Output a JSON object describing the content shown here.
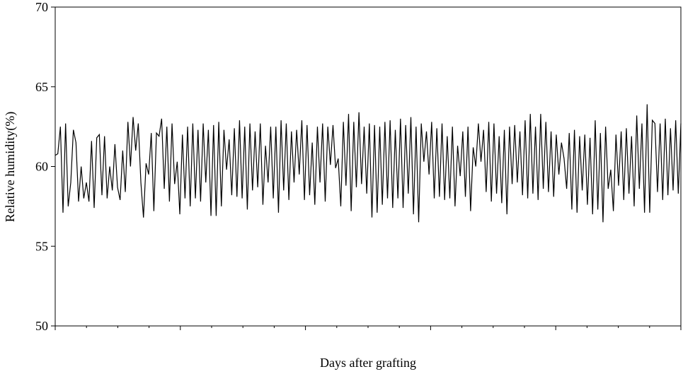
{
  "chart_data": {
    "type": "line",
    "xlabel": "Days after grafting",
    "ylabel": "Relative humidity(%)",
    "ylim": [
      50,
      70
    ],
    "yticks": [
      50,
      55,
      60,
      65,
      70
    ],
    "grid": false,
    "series": [
      {
        "color": "#000000",
        "values": [
          60.7,
          60.8,
          62.5,
          57.1,
          62.7,
          57.5,
          59,
          62.3,
          61.5,
          57.8,
          60,
          58,
          59,
          57.8,
          61.6,
          57.4,
          61.8,
          62,
          58.2,
          61.9,
          58,
          60,
          58.5,
          61.4,
          58.7,
          57.9,
          61,
          58.4,
          62.8,
          60,
          63.1,
          61,
          62.7,
          59,
          56.8,
          60.2,
          59.5,
          62.1,
          57.2,
          62.1,
          61.9,
          63,
          58.6,
          62.5,
          57.8,
          62.7,
          58.9,
          60.3,
          57,
          62,
          58,
          62.5,
          57.5,
          62.7,
          58,
          62.3,
          57.8,
          62.7,
          59,
          62.3,
          56.9,
          62.6,
          56.9,
          62.8,
          57.5,
          62.3,
          59.8,
          61.7,
          58.2,
          62.4,
          58.1,
          62.9,
          58,
          62.5,
          57.3,
          62.7,
          58.5,
          62.2,
          58.7,
          62.7,
          57.6,
          61.3,
          59,
          62.5,
          58,
          62.5,
          57.1,
          62.9,
          58.5,
          62.7,
          57.9,
          62.2,
          59,
          62.3,
          59.5,
          62.9,
          57.9,
          62.6,
          58.2,
          61.5,
          57.6,
          62.5,
          59,
          62.7,
          57.8,
          62.5,
          60.1,
          62.6,
          59.9,
          60.5,
          57.5,
          62.8,
          58.8,
          63.3,
          57.2,
          62.8,
          58.7,
          63.4,
          58.9,
          62.5,
          58.3,
          62.7,
          56.8,
          62.6,
          57.1,
          62.5,
          57.6,
          62.8,
          58,
          62.9,
          57.4,
          62.3,
          58,
          63,
          57.4,
          62.6,
          58.3,
          63.1,
          57,
          62.5,
          56.5,
          62.7,
          60.3,
          62.2,
          59.5,
          62.8,
          58,
          62.4,
          58.1,
          62.7,
          57.9,
          61.9,
          58,
          62.5,
          57.5,
          61.3,
          59.4,
          62.2,
          58.1,
          62.5,
          57.2,
          61.2,
          60,
          62.7,
          60.3,
          62.3,
          58.4,
          62.8,
          57.8,
          62.7,
          58.3,
          61.9,
          57.7,
          62.3,
          57,
          62.5,
          58.9,
          62.6,
          59,
          62.2,
          58.2,
          62.9,
          58,
          63.3,
          58.3,
          62.5,
          57.9,
          63.3,
          58.6,
          62.8,
          58.4,
          62.2,
          58.1,
          62,
          59.5,
          61.5,
          60.5,
          58.6,
          62.1,
          57.3,
          62.3,
          57.1,
          61.9,
          58.5,
          62,
          57.6,
          61.8,
          57,
          62.9,
          57.3,
          62.1,
          56.5,
          62.5,
          58.6,
          59.8,
          57.2,
          62,
          58.8,
          62.2,
          57.9,
          62.4,
          58.3,
          61.9,
          57.5,
          63.2,
          58.6,
          62.7,
          57.1,
          63.9,
          57.1,
          62.9,
          62.7,
          58.4,
          62.7,
          57.9,
          63,
          58.2,
          62.4,
          58.5,
          62.9,
          58.3,
          62.7
        ]
      }
    ]
  }
}
